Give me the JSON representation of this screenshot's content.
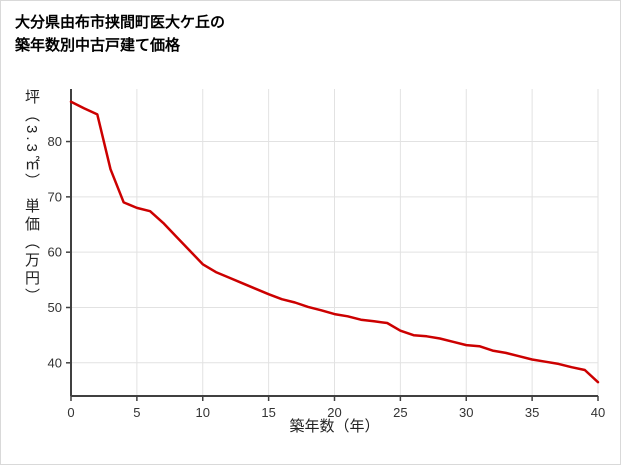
{
  "chart_data": {
    "type": "line",
    "title_line1": "大分県由布市挟間町医大ケ丘の",
    "title_line2": "築年数別中古戸建て価格",
    "xlabel": "築年数（年）",
    "ylabel": "坪（3.3㎡） 単価（万円）",
    "x": [
      0,
      1,
      2,
      3,
      4,
      5,
      6,
      7,
      8,
      9,
      10,
      11,
      12,
      13,
      14,
      15,
      16,
      17,
      18,
      19,
      20,
      21,
      22,
      23,
      24,
      25,
      26,
      27,
      28,
      29,
      30,
      31,
      32,
      33,
      34,
      35,
      36,
      37,
      38,
      39,
      40
    ],
    "values": [
      87.2,
      86.0,
      84.9,
      75.0,
      69.0,
      68.0,
      67.4,
      65.3,
      62.8,
      60.3,
      57.8,
      56.4,
      55.4,
      54.4,
      53.4,
      52.4,
      51.5,
      50.9,
      50.1,
      49.5,
      48.8,
      48.4,
      47.8,
      47.5,
      47.2,
      45.8,
      45.0,
      44.8,
      44.4,
      43.8,
      43.2,
      43.0,
      42.2,
      41.8,
      41.2,
      40.6,
      40.2,
      39.8,
      39.2,
      38.7,
      36.5
    ],
    "xlim": [
      0,
      40
    ],
    "ylim": [
      34,
      89.5
    ],
    "x_ticks": [
      0,
      5,
      10,
      15,
      20,
      25,
      30,
      35,
      40
    ],
    "y_ticks": [
      40,
      50,
      60,
      70,
      80
    ],
    "grid": true,
    "legend_position": "none",
    "colors": {
      "line": "#cc0000",
      "grid": "#e2e2e2",
      "axis": "#404040",
      "tick_text": "#333333"
    }
  }
}
